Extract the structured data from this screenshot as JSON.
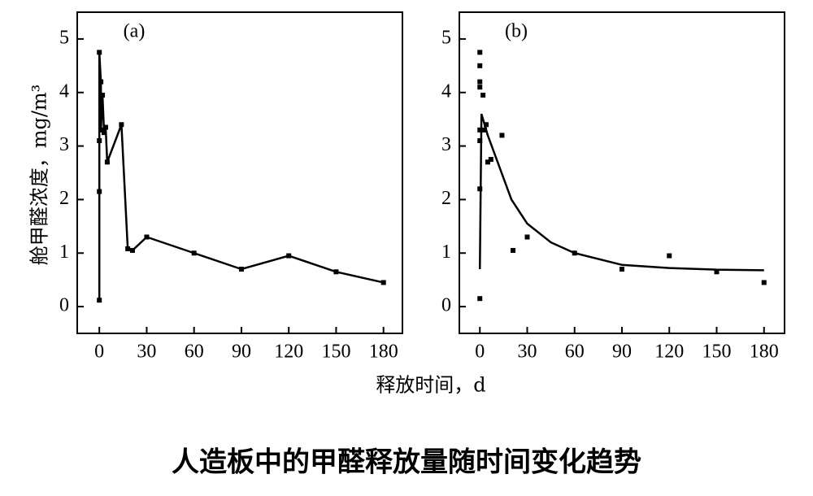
{
  "title": "人造板中的甲醛释放量随时间变化趋势",
  "chart_data": [
    {
      "type": "line",
      "label": "(a)",
      "y_label": "舱甲醛浓度，mg/m³",
      "x_label": "释放时间，d",
      "x": [
        0,
        0,
        0,
        0,
        1,
        1,
        2,
        3,
        4,
        5,
        14,
        18,
        21,
        30,
        60,
        90,
        120,
        150,
        180
      ],
      "values": [
        0.12,
        2.15,
        3.1,
        4.75,
        4.2,
        3.3,
        3.95,
        3.25,
        3.35,
        2.7,
        3.4,
        1.08,
        1.05,
        1.3,
        1.0,
        0.7,
        0.95,
        0.65,
        0.45
      ],
      "color": "#000000",
      "xlim": [
        -14,
        192
      ],
      "ylim": [
        -0.5,
        5.5
      ],
      "xticks": [
        0,
        30,
        60,
        90,
        120,
        150,
        180
      ],
      "yticks": [
        0,
        1,
        2,
        3,
        4,
        5
      ]
    },
    {
      "type": "scatter",
      "label": "(b)",
      "x": [
        0,
        0,
        0,
        0,
        0,
        0,
        0,
        0,
        2,
        3,
        4,
        5,
        7,
        14,
        21,
        30,
        60,
        90,
        120,
        150,
        180
      ],
      "values": [
        0.15,
        2.2,
        3.1,
        3.3,
        4.1,
        4.2,
        4.5,
        4.75,
        3.95,
        3.3,
        3.4,
        2.7,
        2.75,
        3.2,
        1.05,
        1.3,
        1.0,
        0.7,
        0.95,
        0.65,
        0.45
      ],
      "fit_x": [
        0,
        1,
        5,
        10,
        20,
        30,
        45,
        60,
        90,
        120,
        150,
        180
      ],
      "fit_values": [
        0.7,
        3.6,
        3.2,
        2.8,
        2.0,
        1.55,
        1.2,
        1.0,
        0.78,
        0.72,
        0.69,
        0.68
      ],
      "color": "#000000",
      "xlim": [
        -13,
        193
      ],
      "ylim": [
        -0.5,
        5.5
      ],
      "xticks": [
        0,
        30,
        60,
        90,
        120,
        150,
        180
      ],
      "yticks": [
        0,
        1,
        2,
        3,
        4,
        5
      ]
    }
  ]
}
